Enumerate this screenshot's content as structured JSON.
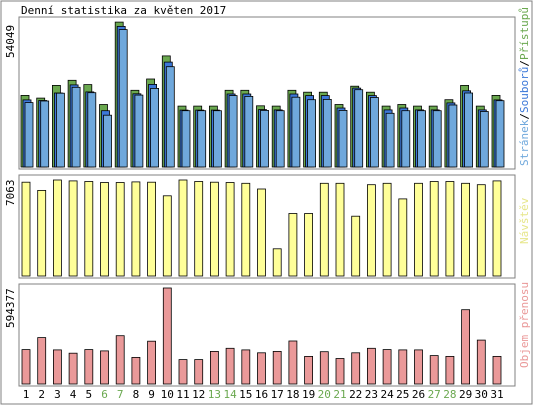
{
  "chart_data": [
    {
      "type": "bar",
      "title": "Denní statistika za květen 2017",
      "max_label": "54049",
      "legend": {
        "parts": [
          "Stránek",
          "Souborů",
          "Přístupů"
        ],
        "separator": "/",
        "colors": [
          "#6fa8dc",
          "#3c78d8",
          "#6aa84f"
        ]
      },
      "categories": [
        "1",
        "2",
        "3",
        "4",
        "5",
        "6",
        "7",
        "8",
        "9",
        "10",
        "11",
        "12",
        "13",
        "14",
        "15",
        "16",
        "17",
        "18",
        "19",
        "20",
        "21",
        "22",
        "23",
        "24",
        "25",
        "26",
        "27",
        "28",
        "29",
        "30",
        "31"
      ],
      "weekend_days": [
        "6",
        "7",
        "13",
        "14",
        "20",
        "21",
        "27",
        "28"
      ],
      "ylim": [
        0,
        54049
      ],
      "series": [
        {
          "name": "Přístupů",
          "color": "#6aa84f",
          "values": [
            26700,
            25700,
            30400,
            32300,
            30700,
            23300,
            54000,
            28600,
            32800,
            41400,
            22700,
            22700,
            22700,
            28600,
            28600,
            22800,
            22700,
            28600,
            27900,
            27900,
            23300,
            30100,
            27900,
            22700,
            23300,
            22700,
            22700,
            25100,
            30400,
            22700,
            26700
          ]
        },
        {
          "name": "Souborů",
          "color": "#3c78d8",
          "values": [
            25000,
            24800,
            27600,
            30600,
            28000,
            21000,
            52400,
            27300,
            30800,
            39100,
            21200,
            21200,
            21200,
            27200,
            27200,
            21400,
            21300,
            27200,
            26600,
            26600,
            22000,
            29400,
            26600,
            21300,
            22000,
            21300,
            21300,
            23900,
            28400,
            21300,
            25000
          ]
        },
        {
          "name": "Stránek",
          "color": "#6fa8dc",
          "values": [
            24000,
            24600,
            27500,
            29700,
            27700,
            19300,
            51200,
            26800,
            29300,
            37400,
            21000,
            21000,
            21000,
            26600,
            26300,
            21100,
            21000,
            26000,
            25100,
            25200,
            21100,
            28800,
            25900,
            20000,
            21000,
            21000,
            21000,
            23100,
            27600,
            20700,
            24700
          ]
        }
      ]
    },
    {
      "type": "bar",
      "max_label": "7063",
      "legend": "Návštěv",
      "color": "#ffff99",
      "ylim": [
        0,
        7063
      ],
      "values": [
        6900,
        6300,
        7060,
        7000,
        6950,
        6880,
        6880,
        6920,
        6900,
        5900,
        7063,
        6950,
        6900,
        6880,
        6820,
        6400,
        2000,
        4600,
        4600,
        6820,
        6820,
        4400,
        6720,
        6820,
        5670,
        6820,
        6950,
        6950,
        6820,
        6720,
        7000
      ]
    },
    {
      "type": "bar",
      "max_label": "594377",
      "legend": "Objem přenosu",
      "color": "#ea9999",
      "ylim": [
        0,
        594377
      ],
      "values": [
        213000,
        287000,
        211000,
        191000,
        213000,
        205000,
        299000,
        165000,
        265000,
        594377,
        151000,
        151000,
        202000,
        221000,
        211000,
        193000,
        202000,
        266000,
        171000,
        200000,
        158000,
        193000,
        221000,
        213000,
        211000,
        211000,
        176000,
        171000,
        460000,
        272000,
        171000
      ]
    }
  ]
}
